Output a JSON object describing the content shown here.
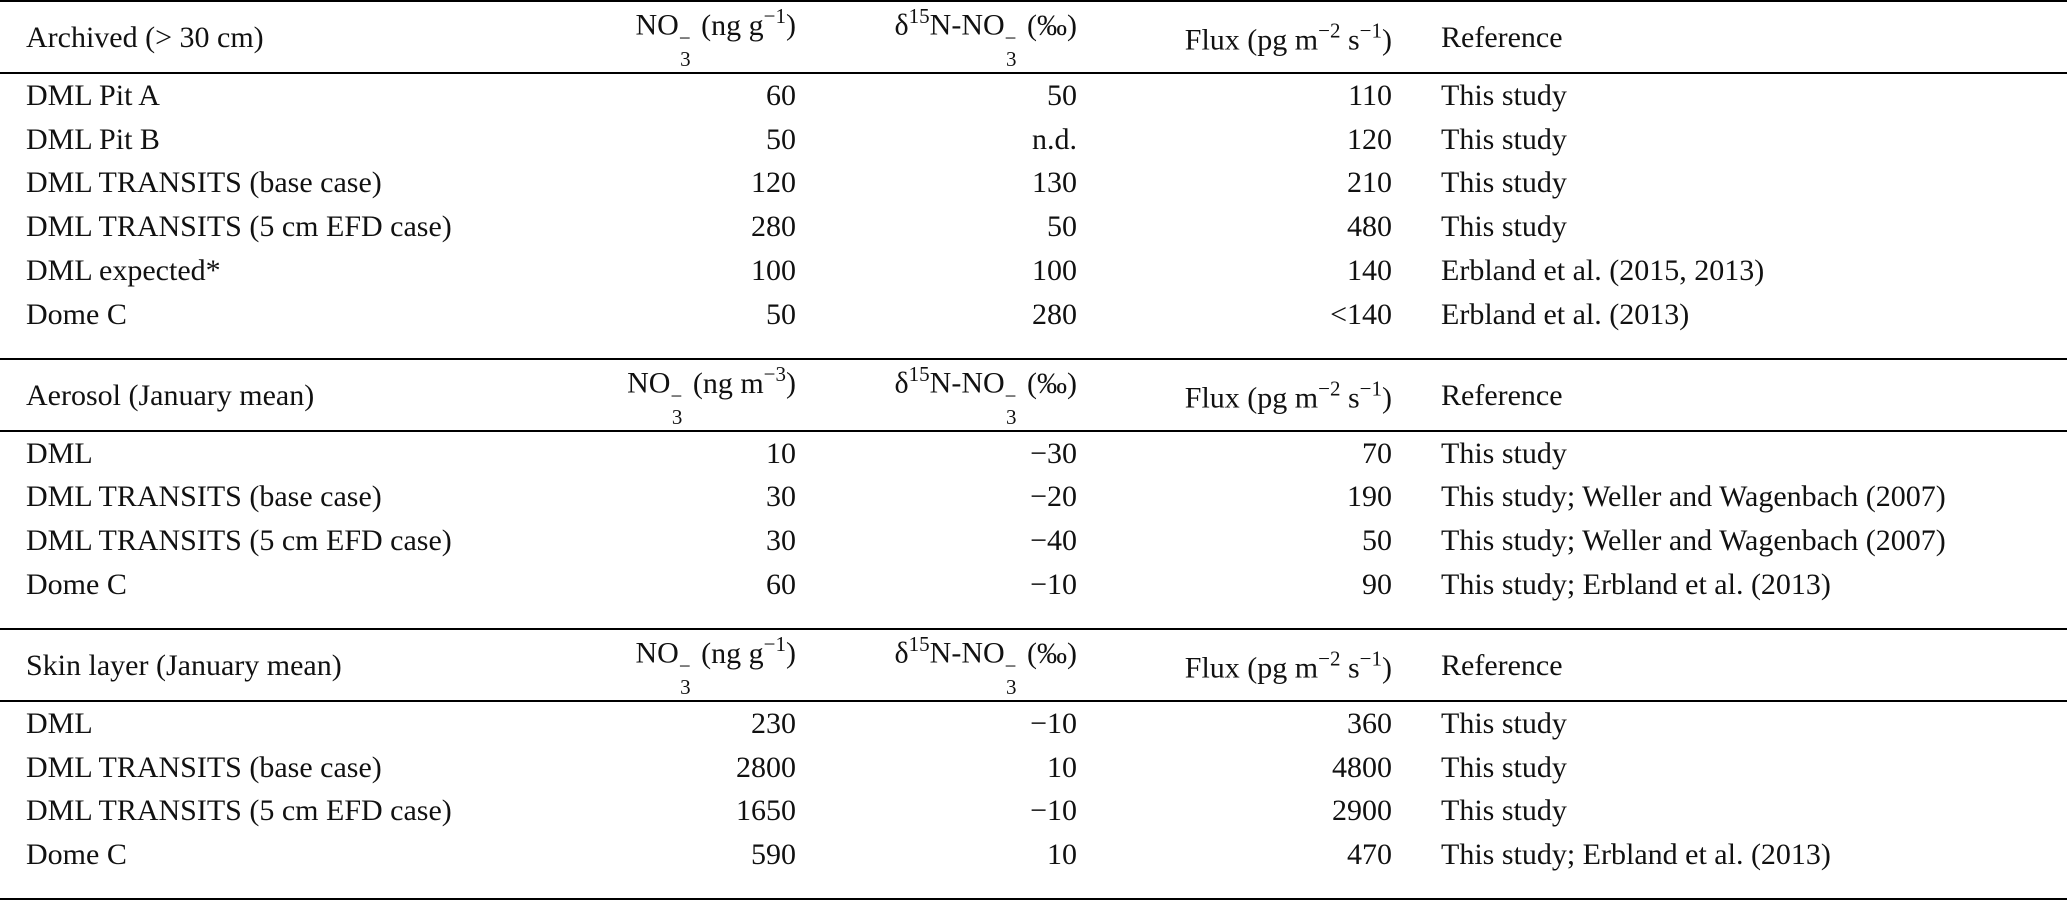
{
  "sections": [
    {
      "header": {
        "label": "Archived (> 30 cm)",
        "conc": [
          "NO",
          "3",
          "−",
          "(ng g",
          "−1",
          ")"
        ],
        "delta": [
          "δ",
          "15",
          "N-NO",
          "3",
          "−",
          "(‰)"
        ],
        "flux": [
          "Flux (pg m",
          "−2",
          " s",
          "−1",
          ")"
        ],
        "reference": "Reference"
      },
      "rows": [
        [
          "DML Pit A",
          "60",
          "50",
          "110",
          "This study"
        ],
        [
          "DML Pit B",
          "50",
          "n.d.",
          "120",
          "This study"
        ],
        [
          "DML TRANSITS (base case)",
          "120",
          "130",
          "210",
          "This study"
        ],
        [
          "DML TRANSITS (5 cm EFD case)",
          "280",
          "50",
          "480",
          "This study"
        ],
        [
          "DML expected*",
          "100",
          "100",
          "140",
          "Erbland et al. (2015, 2013)"
        ],
        [
          "Dome C",
          "50",
          "280",
          "<140",
          "Erbland et al. (2013)"
        ]
      ]
    },
    {
      "header": {
        "label": "Aerosol (January mean)",
        "conc": [
          "NO",
          "3",
          "−",
          "(ng m",
          "−3",
          ")"
        ],
        "delta": [
          "δ",
          "15",
          "N-NO",
          "3",
          "−",
          "(‰)"
        ],
        "flux": [
          "Flux (pg m",
          "−2",
          " s",
          "−1",
          ")"
        ],
        "reference": "Reference"
      },
      "rows": [
        [
          "DML",
          "10",
          "−30",
          "70",
          "This study"
        ],
        [
          "DML TRANSITS (base case)",
          "30",
          "−20",
          "190",
          "This study; Weller and Wagenbach (2007)"
        ],
        [
          "DML TRANSITS (5 cm EFD case)",
          "30",
          "−40",
          "50",
          "This study; Weller and Wagenbach (2007)"
        ],
        [
          "Dome C",
          "60",
          "−10",
          "90",
          "This study; Erbland et al. (2013)"
        ]
      ]
    },
    {
      "header": {
        "label": "Skin layer (January mean)",
        "conc": [
          "NO",
          "3",
          "−",
          "(ng g",
          "−1",
          ")"
        ],
        "delta": [
          "δ",
          "15",
          "N-NO",
          "3",
          "−",
          "(‰)"
        ],
        "flux": [
          "Flux (pg m",
          "−2",
          " s",
          "−1",
          ")"
        ],
        "reference": "Reference"
      },
      "rows": [
        [
          "DML",
          "230",
          "−10",
          "360",
          "This study"
        ],
        [
          "DML TRANSITS (base case)",
          "2800",
          "10",
          "4800",
          "This study"
        ],
        [
          "DML TRANSITS (5 cm EFD case)",
          "1650",
          "−10",
          "2900",
          "This study"
        ],
        [
          "Dome C",
          "590",
          "10",
          "470",
          "This study; Erbland et al. (2013)"
        ]
      ]
    }
  ]
}
